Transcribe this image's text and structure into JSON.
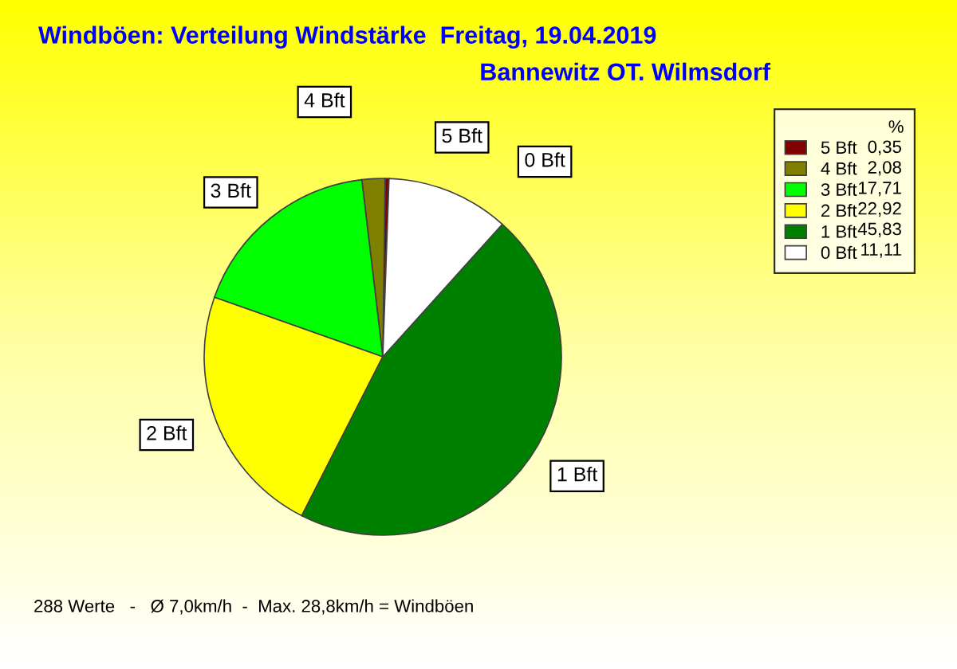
{
  "chart_data": {
    "type": "pie",
    "title": "Windböen: Verteilung Windstärke  Freitag, 19.04.2019",
    "subtitle": "Bannewitz OT. Wilmsdorf",
    "categories": [
      "5 Bft",
      "4 Bft",
      "3 Bft",
      "2 Bft",
      "1 Bft",
      "0 Bft"
    ],
    "values": [
      0.35,
      2.08,
      17.71,
      22.92,
      45.83,
      11.11
    ],
    "value_labels": [
      "0,35",
      "2,08",
      "17,71",
      "22,92",
      "45,83",
      "11,11"
    ],
    "colors": [
      "#800000",
      "#808000",
      "#00ff00",
      "#ffff00",
      "#008000",
      "#ffffff"
    ],
    "legend": "top right",
    "legend_title": "%",
    "annotations": [
      "288 Werte   -   Ø 7,0km/h  -  Max. 28,8km/h = Windböen"
    ]
  }
}
